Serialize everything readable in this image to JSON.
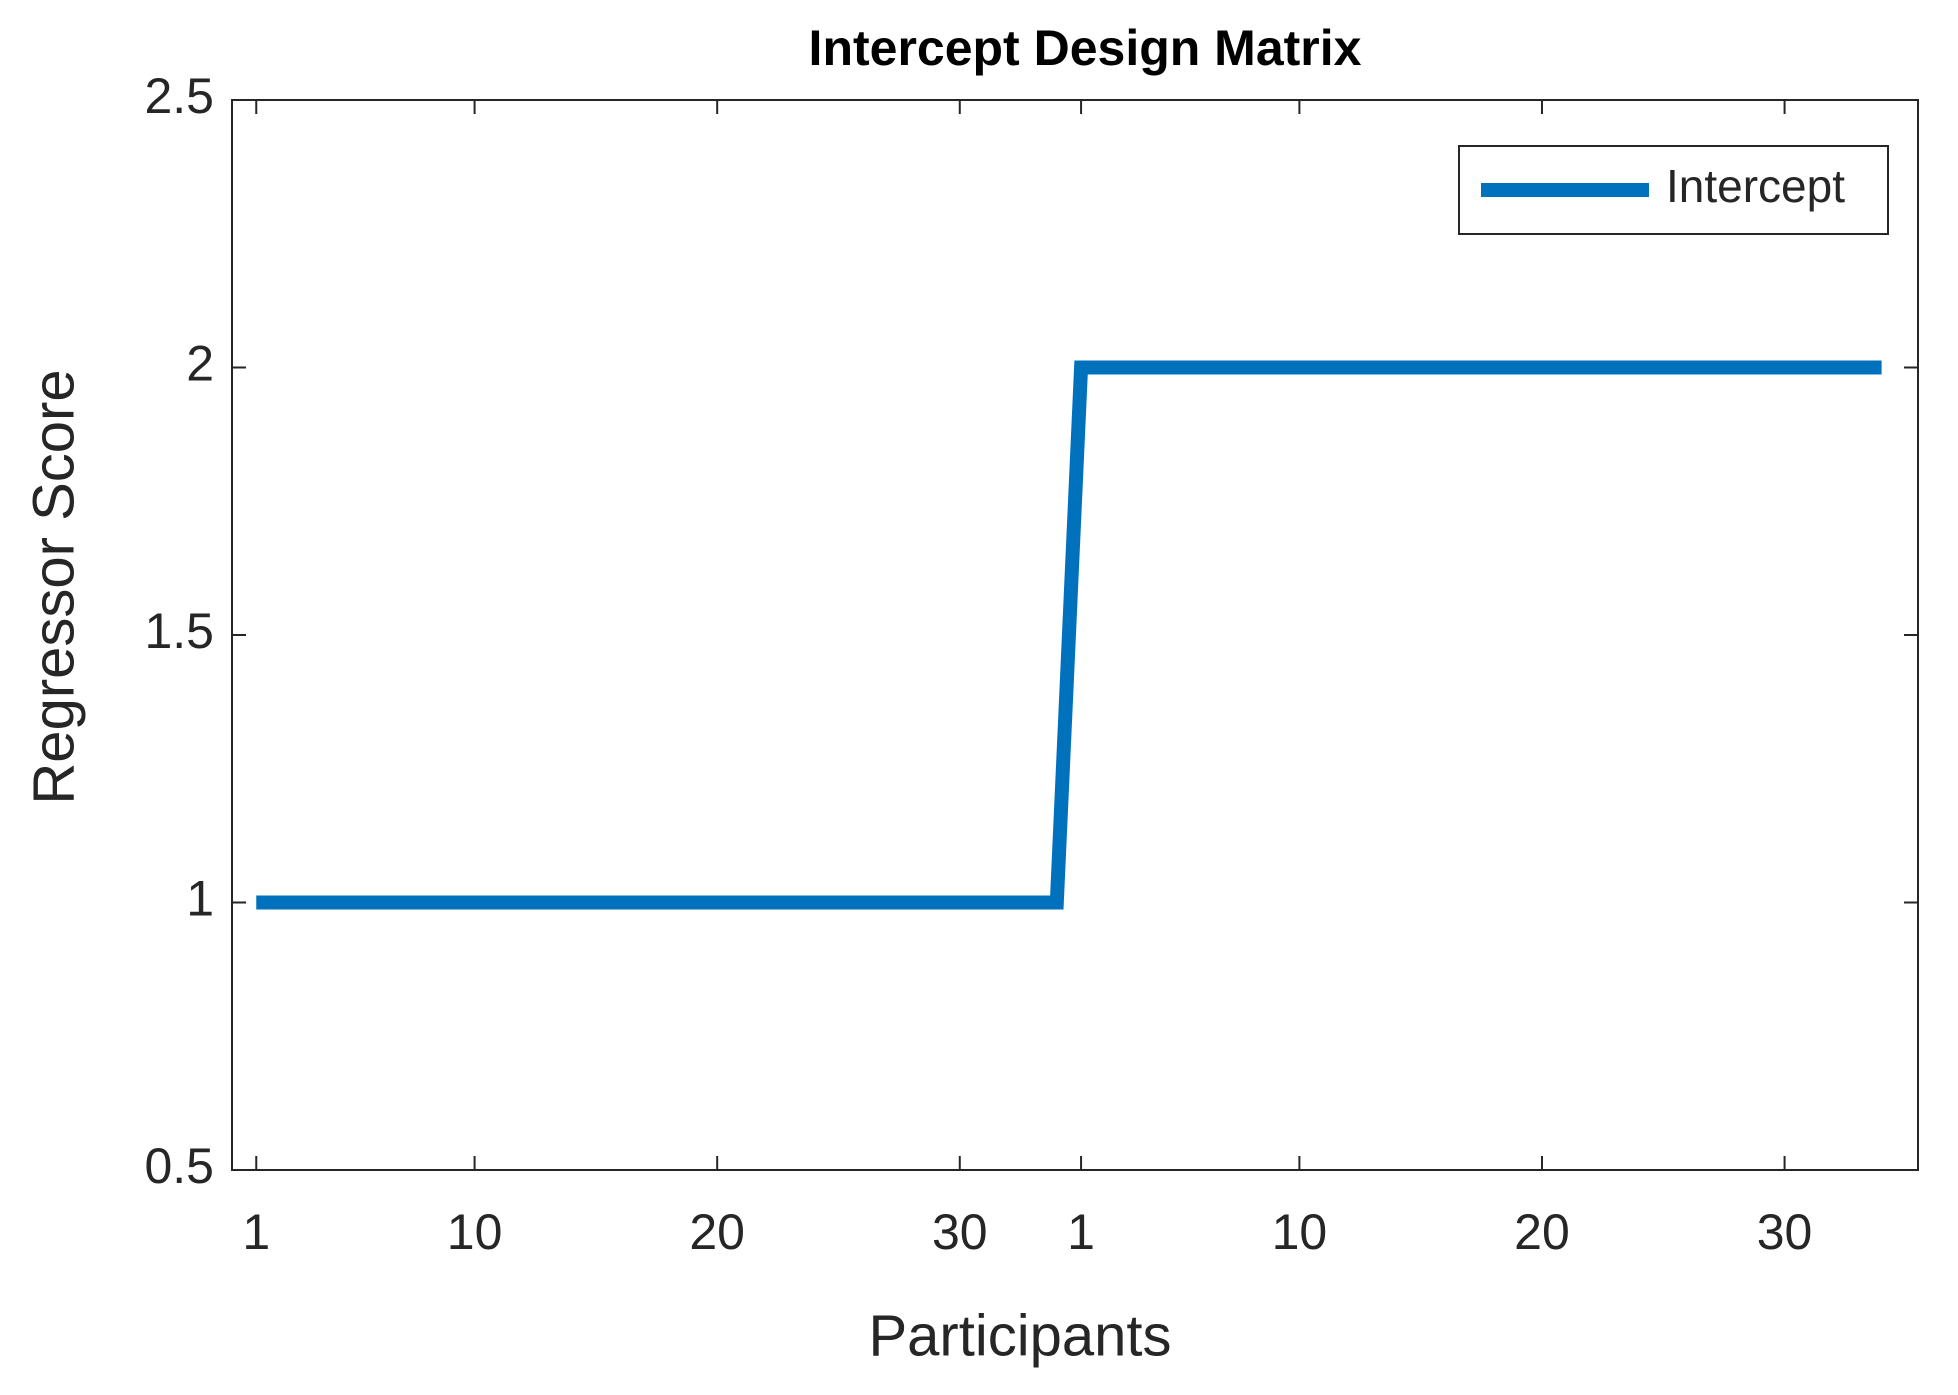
{
  "chart_data": {
    "type": "line",
    "title": "Intercept Design Matrix",
    "x_label": "Participants",
    "y_label": "Regressor Score",
    "x": [
      1,
      2,
      3,
      4,
      5,
      6,
      7,
      8,
      9,
      10,
      11,
      12,
      13,
      14,
      15,
      16,
      17,
      18,
      19,
      20,
      21,
      22,
      23,
      24,
      25,
      26,
      27,
      28,
      29,
      30,
      31,
      32,
      33,
      34,
      35,
      36,
      37,
      38,
      39,
      40,
      41,
      42,
      43,
      44,
      45,
      46,
      47,
      48,
      49,
      50,
      51,
      52,
      53,
      54,
      55,
      56,
      57,
      58,
      59,
      60,
      61,
      62,
      63,
      64,
      65,
      66,
      67,
      68
    ],
    "series": [
      {
        "name": "Intercept",
        "color": "#0072bd",
        "values": [
          1,
          1,
          1,
          1,
          1,
          1,
          1,
          1,
          1,
          1,
          1,
          1,
          1,
          1,
          1,
          1,
          1,
          1,
          1,
          1,
          1,
          1,
          1,
          1,
          1,
          1,
          1,
          1,
          1,
          1,
          1,
          1,
          1,
          1,
          2,
          2,
          2,
          2,
          2,
          2,
          2,
          2,
          2,
          2,
          2,
          2,
          2,
          2,
          2,
          2,
          2,
          2,
          2,
          2,
          2,
          2,
          2,
          2,
          2,
          2,
          2,
          2,
          2,
          2,
          2,
          2,
          2,
          2
        ]
      }
    ],
    "xlim": [
      0,
      69.5
    ],
    "ylim": [
      0.5,
      2.5
    ],
    "xticks": [
      1,
      10,
      20,
      30,
      {
        "value": 35,
        "label": "1"
      },
      {
        "value": 44,
        "label": "10"
      },
      {
        "value": 54,
        "label": "20"
      },
      {
        "value": 64,
        "label": "30"
      }
    ],
    "yticks": [
      0.5,
      1,
      1.5,
      2,
      2.5
    ],
    "grid": false,
    "legend": "upper right"
  }
}
